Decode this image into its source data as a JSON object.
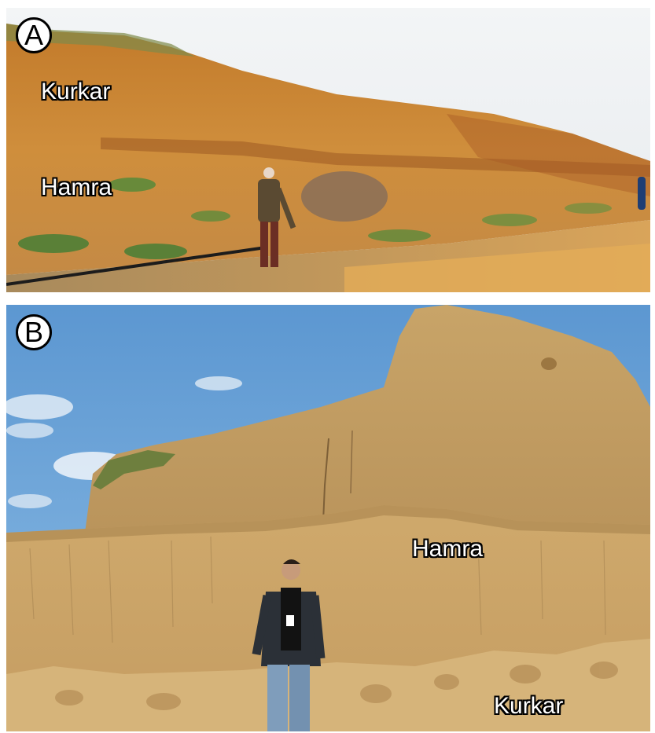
{
  "panels": [
    {
      "letter": "A",
      "labels": {
        "upper": "Kurkar",
        "lower": "Hamra"
      }
    },
    {
      "letter": "B",
      "labels": {
        "upper": "Hamra",
        "lower": "Kurkar"
      }
    }
  ],
  "colors": {
    "sky_a": "#eef1f3",
    "cliff_a": "#c9852f",
    "sky_b": "#6fa6d8",
    "cliff_b": "#c9a066"
  }
}
